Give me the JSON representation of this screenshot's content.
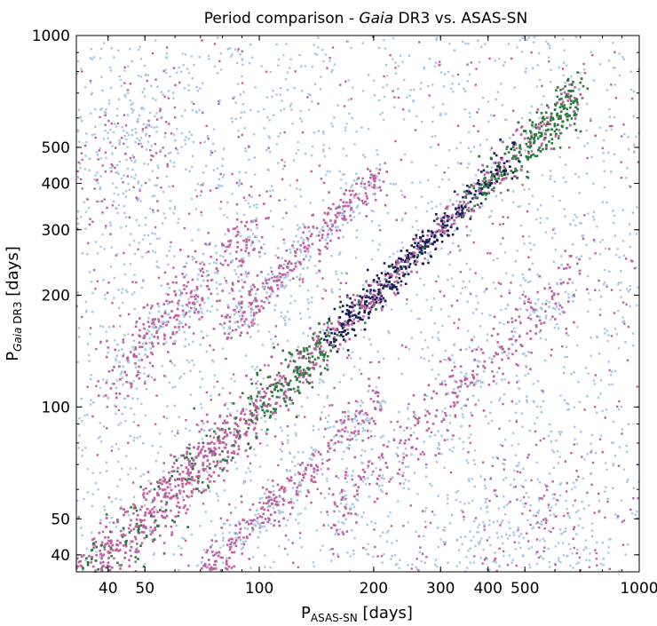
{
  "chart_data": {
    "type": "scatter",
    "title_parts": [
      "Period comparison - ",
      "Gaia",
      " DR3 vs. ASAS-SN"
    ],
    "xlabel": {
      "base": "P",
      "sub": "ASAS-SN",
      "unit": " [days]"
    },
    "ylabel": {
      "base": "P",
      "sub_italic": "Gaia",
      "sub": " DR3",
      "unit": " [days]"
    },
    "x_scale": "log",
    "y_scale": "log",
    "xlim": [
      33,
      1000
    ],
    "ylim": [
      36,
      1000
    ],
    "x_ticks": [
      40,
      50,
      100,
      200,
      300,
      400,
      500,
      1000
    ],
    "x_tick_labels": [
      "40",
      "50",
      "100",
      "200",
      "300",
      "400",
      "500",
      "1000"
    ],
    "y_ticks": [
      40,
      50,
      100,
      200,
      300,
      400,
      500,
      1000
    ],
    "y_tick_labels": [
      "40",
      "50",
      "100",
      "200",
      "300",
      "400",
      "500",
      "1000"
    ],
    "grid": false,
    "legend": "none",
    "colors": {
      "sparse": "#a8c8e8",
      "medium": "#c060a0",
      "dense": "#2a7a3a",
      "core": "#14205a"
    },
    "point_density_levels": [
      "sparse",
      "medium",
      "dense",
      "core"
    ],
    "bands": [
      {
        "relation": "y = x",
        "x_range": [
          33,
          700
        ],
        "spread": 0.025,
        "peak_x": 270
      },
      {
        "relation": "y = 2x",
        "x_range": [
          80,
          210
        ],
        "spread": 0.03
      },
      {
        "relation": "y = x/2",
        "x_range": [
          70,
          210
        ],
        "spread": 0.03
      },
      {
        "relation": "y = 3x",
        "x_range": [
          40,
          100
        ],
        "spread": 0.05
      },
      {
        "relation": "y = x/3",
        "x_range": [
          150,
          700
        ],
        "spread": 0.05
      }
    ],
    "clusters": [
      {
        "x": 45,
        "y": 470
      },
      {
        "x": 500,
        "y": 50
      }
    ]
  }
}
